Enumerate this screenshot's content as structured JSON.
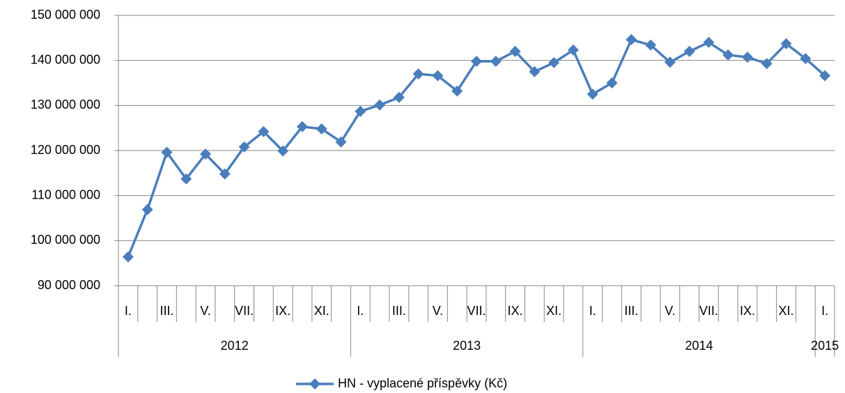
{
  "chart_data": {
    "type": "line",
    "categories": [
      "I.",
      null,
      "III.",
      null,
      "V.",
      null,
      "VII.",
      null,
      "IX.",
      null,
      "XI.",
      null,
      "I.",
      null,
      "III.",
      null,
      "V.",
      null,
      "VII.",
      null,
      "IX.",
      null,
      "XI.",
      null,
      "I.",
      null,
      "III.",
      null,
      "V.",
      null,
      "VII.",
      null,
      "IX.",
      null,
      "XI.",
      null,
      "I."
    ],
    "year_labels": [
      "2012",
      "2013",
      "2014",
      "2015"
    ],
    "series": [
      {
        "name": "HN - vyplacené příspěvky (Kč)",
        "color": "#4a7ebb",
        "values": [
          96400000,
          106900000,
          119600000,
          113700000,
          119200000,
          114800000,
          120800000,
          124200000,
          119900000,
          125300000,
          124800000,
          121900000,
          128700000,
          130100000,
          131800000,
          137000000,
          136600000,
          133200000,
          139800000,
          139800000,
          142000000,
          137500000,
          139500000,
          142300000,
          132500000,
          135000000,
          144600000,
          143400000,
          139600000,
          142000000,
          144000000,
          141200000,
          140700000,
          139300000,
          143700000,
          140400000,
          136600000
        ]
      }
    ],
    "ylim": [
      90000000,
      150000000
    ],
    "yticks": [
      {
        "value": 90000000,
        "label": "90 000 000"
      },
      {
        "value": 100000000,
        "label": "100 000 000"
      },
      {
        "value": 110000000,
        "label": "110 000 000"
      },
      {
        "value": 120000000,
        "label": "120 000 000"
      },
      {
        "value": 130000000,
        "label": "130 000 000"
      },
      {
        "value": 140000000,
        "label": "140 000 000"
      },
      {
        "value": 150000000,
        "label": "150 000 000"
      }
    ],
    "grid": true,
    "legend": "bottom"
  }
}
